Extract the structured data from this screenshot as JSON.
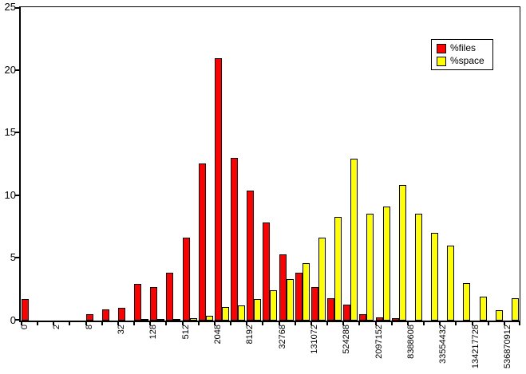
{
  "colors": {
    "files": "#ff0000",
    "space": "#ffff00",
    "axis": "#000000",
    "background": "#ffffff"
  },
  "legend": {
    "files_label": "%files",
    "space_label": "%space"
  },
  "chart_data": {
    "type": "bar",
    "title": "",
    "xlabel": "",
    "ylabel": "",
    "ylim": [
      0,
      25
    ],
    "y_ticks": [
      0,
      5,
      10,
      15,
      20,
      25
    ],
    "grid": false,
    "legend_position": "top-right",
    "categories": [
      "0",
      "",
      "2",
      "",
      "8",
      "",
      "32",
      "",
      "128",
      "",
      "512",
      "",
      "2048",
      "",
      "8192",
      "",
      "32768",
      "",
      "131072",
      "",
      "524288",
      "",
      "2097152",
      "",
      "8388608",
      "",
      "33554432",
      "",
      "134217728",
      "",
      "536870912"
    ],
    "series": [
      {
        "name": "%files",
        "color": "#ff0000",
        "values": [
          1.7,
          0,
          0,
          0,
          0.5,
          0.9,
          1.0,
          2.9,
          2.7,
          3.8,
          6.6,
          12.5,
          20.9,
          13.0,
          10.4,
          7.8,
          5.3,
          3.8,
          2.7,
          1.8,
          1.3,
          0.5,
          0.25,
          0.2,
          0,
          0,
          0,
          0,
          0,
          0,
          0
        ]
      },
      {
        "name": "%space",
        "color": "#ffff00",
        "values": [
          0,
          0,
          0,
          0,
          0,
          0,
          0,
          0.1,
          0.1,
          0.1,
          0.2,
          0.4,
          1.1,
          1.2,
          1.7,
          2.4,
          3.3,
          4.6,
          6.6,
          8.3,
          12.9,
          8.5,
          9.1,
          10.8,
          8.5,
          7.0,
          6.0,
          3.0,
          1.9,
          0.8,
          1.8
        ]
      }
    ]
  }
}
